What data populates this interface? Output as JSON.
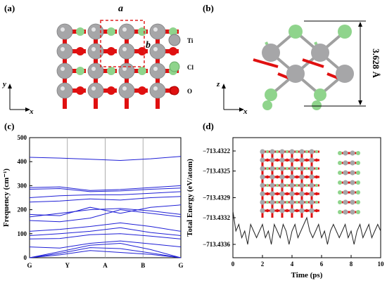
{
  "panels": {
    "a": {
      "label": "(a)",
      "lattice_a": "a",
      "lattice_b": "b",
      "axis_y": "y",
      "axis_x": "x",
      "legend": [
        {
          "name": "Ti",
          "color": "#a6a6a8"
        },
        {
          "name": "Cl",
          "color": "#8fd48c"
        },
        {
          "name": "O",
          "color": "#e01010"
        }
      ]
    },
    "b": {
      "label": "(b)",
      "axis_z": "z",
      "axis_x": "x",
      "thickness": "3.628 Å"
    },
    "c": {
      "label": "(c)"
    },
    "d": {
      "label": "(d)"
    }
  },
  "chart_data": [
    {
      "type": "line",
      "panel": "c",
      "ylabel": "Frequency (cm⁻¹)",
      "xlabel": "",
      "x_ticks": [
        "G",
        "Y",
        "A",
        "B",
        "G"
      ],
      "ylim": [
        0,
        500
      ],
      "y_ticks": [
        0,
        100,
        200,
        300,
        400,
        500
      ],
      "color": "#1f1fd6",
      "series": [
        {
          "values": [
            0,
            12,
            30,
            22,
            14,
            0
          ]
        },
        {
          "values": [
            0,
            18,
            42,
            38,
            20,
            0
          ]
        },
        {
          "values": [
            0,
            25,
            52,
            60,
            34,
            0
          ]
        },
        {
          "values": [
            45,
            40,
            60,
            70,
            58,
            45
          ]
        },
        {
          "values": [
            78,
            80,
            96,
            100,
            90,
            78
          ]
        },
        {
          "values": [
            92,
            100,
            110,
            125,
            105,
            92
          ]
        },
        {
          "values": [
            110,
            118,
            130,
            145,
            130,
            110
          ]
        },
        {
          "values": [
            155,
            150,
            165,
            200,
            185,
            170
          ]
        },
        {
          "values": [
            170,
            185,
            200,
            205,
            195,
            180
          ]
        },
        {
          "values": [
            180,
            175,
            210,
            185,
            210,
            220
          ]
        },
        {
          "values": [
            232,
            236,
            245,
            240,
            250,
            255
          ]
        },
        {
          "values": [
            250,
            258,
            262,
            262,
            268,
            275
          ]
        },
        {
          "values": [
            285,
            288,
            275,
            278,
            285,
            290
          ]
        },
        {
          "values": [
            292,
            295,
            280,
            284,
            292,
            300
          ]
        },
        {
          "values": [
            418,
            415,
            410,
            405,
            412,
            422
          ]
        }
      ]
    },
    {
      "type": "line",
      "panel": "d",
      "xlabel": "Time (ps)",
      "ylabel": "Total Energy (eV/atom)",
      "xlim": [
        0,
        10
      ],
      "ylim": [
        -713.4338,
        -713.432
      ],
      "x_ticks": [
        0,
        2,
        4,
        6,
        8,
        10
      ],
      "y_ticks": [
        "-713.4322",
        "-713.4325",
        "-713.4329",
        "-713.4332",
        "-713.4336"
      ],
      "color": "#222222",
      "series": [
        {
          "values": [
            -713.4331,
            -713.4334,
            -713.4333,
            -713.4335,
            -713.4334,
            -713.4336,
            -713.4333,
            -713.4334,
            -713.4335,
            -713.4334,
            -713.4333,
            -713.4335,
            -713.4334,
            -713.4336,
            -713.4333,
            -713.4334,
            -713.4335,
            -713.4333,
            -713.4334,
            -713.4336,
            -713.4334,
            -713.4333,
            -713.4335,
            -713.4334,
            -713.4333,
            -713.4332,
            -713.4334,
            -713.4335,
            -713.4334,
            -713.4333,
            -713.4335,
            -713.4334,
            -713.4336,
            -713.4334,
            -713.4333,
            -713.4334,
            -713.4335,
            -713.4334,
            -713.4333,
            -713.4335,
            -713.4334,
            -713.4336,
            -713.4334,
            -713.4333,
            -713.4335,
            -713.4334,
            -713.4333,
            -713.4335,
            -713.4334,
            -713.4333,
            -713.4334
          ]
        }
      ]
    }
  ]
}
